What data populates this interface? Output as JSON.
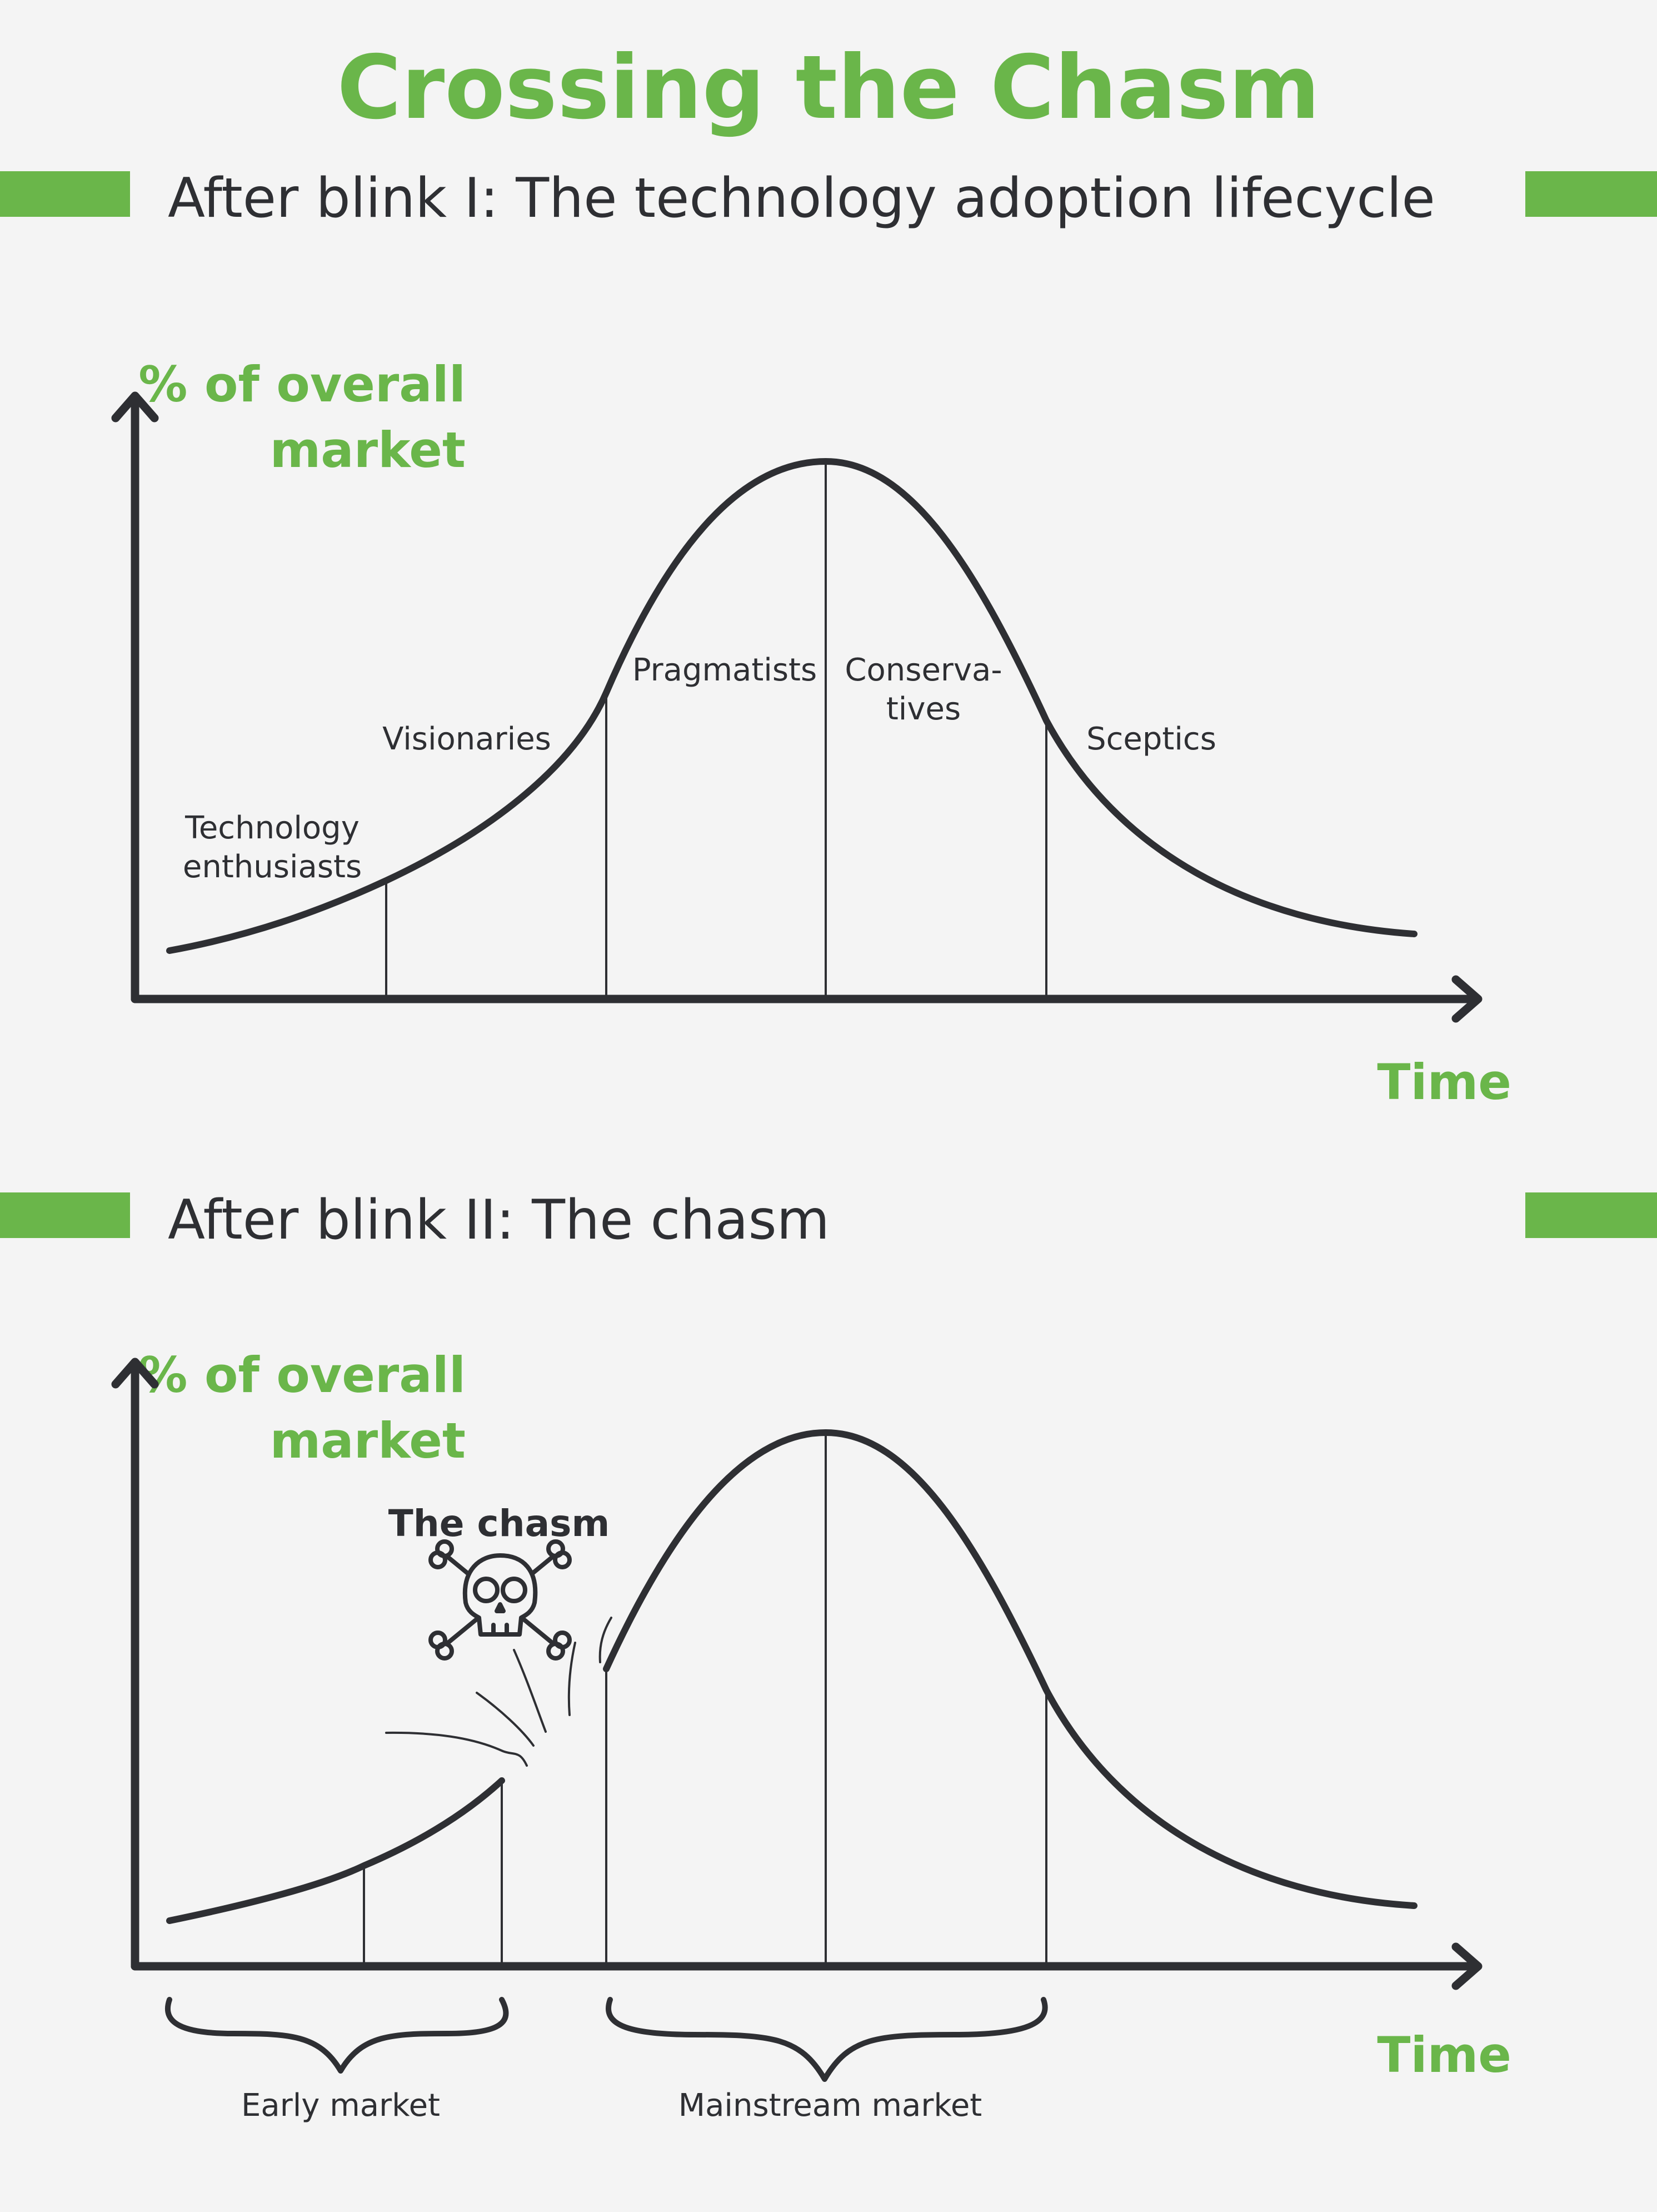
{
  "title": "Crossing the Chasm",
  "colors": {
    "accent": "#6ab64a",
    "ink": "#2e2f33",
    "background": "#f4f4f4"
  },
  "section1": {
    "heading": "After blink I: The technology adoption lifecycle",
    "y_label_line1": "% of overall",
    "y_label_line2": "market",
    "x_label": "Time",
    "segments": {
      "technology_line1": "Technology",
      "technology_line2": "enthusiasts",
      "visionaries": "Visionaries",
      "pragmatists": "Pragmatists",
      "conservatives_line1": "Conserva-",
      "conservatives_line2": "tives",
      "sceptics": "Sceptics"
    }
  },
  "section2": {
    "heading": "After blink II: The chasm",
    "y_label_line1": "% of overall",
    "y_label_line2": "market",
    "x_label": "Time",
    "chasm_label": "The chasm",
    "chasm_icon": "skull-and-crossbones-icon",
    "early_market": "Early market",
    "mainstream_market": "Mainstream market"
  }
}
